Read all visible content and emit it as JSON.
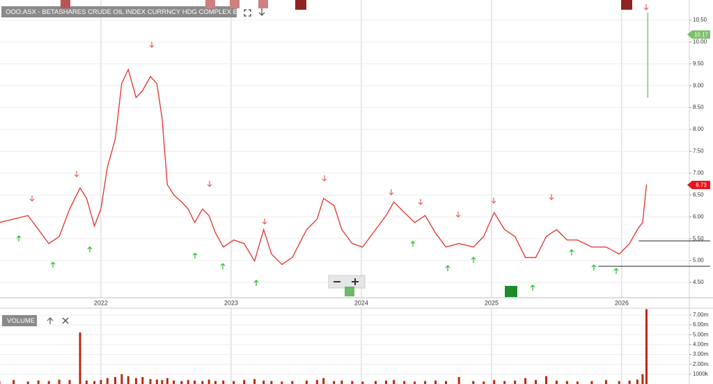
{
  "chart_data": [
    {
      "type": "line",
      "title": "OOO.ASX - BETASHARES CRUDE OIL INDEX CURRNCY HDG COMPLEX ETF",
      "x": [
        2021.22,
        2021.33,
        2021.44,
        2021.52,
        2021.6,
        2021.68,
        2021.76,
        2021.84,
        2021.89,
        2021.95,
        2022.0,
        2022.05,
        2022.11,
        2022.16,
        2022.21,
        2022.27,
        2022.32,
        2022.38,
        2022.43,
        2022.47,
        2022.51,
        2022.56,
        2022.62,
        2022.67,
        2022.72,
        2022.78,
        2022.83,
        2022.88,
        2022.94,
        2023.02,
        2023.1,
        2023.18,
        2023.25,
        2023.31,
        2023.39,
        2023.47,
        2023.58,
        2023.66,
        2023.71,
        2023.79,
        2023.85,
        2023.93,
        2024.01,
        2024.11,
        2024.19,
        2024.25,
        2024.33,
        2024.41,
        2024.49,
        2024.57,
        2024.65,
        2024.75,
        2024.86,
        2024.94,
        2025.02,
        2025.1,
        2025.18,
        2025.26,
        2025.34,
        2025.42,
        2025.5,
        2025.58,
        2025.66,
        2025.77,
        2025.88,
        2025.98,
        2026.06,
        2026.12,
        2026.16,
        2026.19
      ],
      "values": [
        5.87,
        5.95,
        6.03,
        5.71,
        5.39,
        5.55,
        6.18,
        6.66,
        6.42,
        5.79,
        6.18,
        7.14,
        7.78,
        9.05,
        9.37,
        8.73,
        8.89,
        9.21,
        9.05,
        8.25,
        6.74,
        6.5,
        6.34,
        6.18,
        5.87,
        6.18,
        6.03,
        5.63,
        5.31,
        5.47,
        5.39,
        4.99,
        5.71,
        5.15,
        4.91,
        5.07,
        5.71,
        5.95,
        6.42,
        6.26,
        5.71,
        5.39,
        5.31,
        5.71,
        6.03,
        6.34,
        6.1,
        5.87,
        6.03,
        5.63,
        5.31,
        5.39,
        5.31,
        5.55,
        6.1,
        5.71,
        5.55,
        5.07,
        5.07,
        5.55,
        5.71,
        5.47,
        5.47,
        5.31,
        5.31,
        5.15,
        5.39,
        5.71,
        5.87,
        6.74
      ],
      "color": "#e0302a",
      "xlim": [
        2021.225,
        2026.519
      ],
      "ylim": [
        4.15,
        10.96
      ],
      "xticks": [
        2022,
        2023,
        2024,
        2025,
        2026
      ],
      "yticks": [
        {
          "value": 4.5,
          "label": "4.50"
        },
        {
          "value": 5,
          "label": "5.00"
        },
        {
          "value": 5.5,
          "label": "5.50"
        },
        {
          "value": 6,
          "label": "6.00"
        },
        {
          "value": 6.5,
          "label": "6.50"
        },
        {
          "value": 7,
          "label": "7.00"
        },
        {
          "value": 7.5,
          "label": "7.50"
        },
        {
          "value": 8,
          "label": "8.00"
        },
        {
          "value": 8.5,
          "label": "8.50"
        },
        {
          "value": 9,
          "label": "9.00"
        },
        {
          "value": 9.5,
          "label": "9.50"
        },
        {
          "value": 10,
          "label": "10.00"
        },
        {
          "value": 10.5,
          "label": "10.50"
        }
      ],
      "grid": true,
      "price_tags": [
        {
          "value": 10.17,
          "color": "#7dbf6a"
        },
        {
          "value": 6.73,
          "color": "#e8141b"
        }
      ],
      "levels": [
        {
          "value": 5.45,
          "from": 2026.13
        },
        {
          "value": 4.87,
          "from": 2025.82
        }
      ],
      "latest_bar": {
        "x": 2026.2,
        "low": 8.73,
        "high": 10.67,
        "color": "#7dc56c"
      }
    },
    {
      "type": "bar",
      "title": "VOLUME",
      "x": [
        2021.22,
        2021.33,
        2021.44,
        2021.52,
        2021.6,
        2021.68,
        2021.76,
        2021.84,
        2021.89,
        2021.95,
        2022.0,
        2022.05,
        2022.11,
        2022.16,
        2022.21,
        2022.27,
        2022.32,
        2022.38,
        2022.43,
        2022.47,
        2022.51,
        2022.56,
        2022.62,
        2022.67,
        2022.72,
        2022.78,
        2022.83,
        2022.88,
        2022.94,
        2023.02,
        2023.1,
        2023.18,
        2023.25,
        2023.31,
        2023.39,
        2023.47,
        2023.58,
        2023.66,
        2023.71,
        2023.79,
        2023.85,
        2023.93,
        2024.01,
        2024.11,
        2024.19,
        2024.25,
        2024.33,
        2024.41,
        2024.49,
        2024.57,
        2024.65,
        2024.75,
        2024.86,
        2024.94,
        2025.02,
        2025.1,
        2025.18,
        2025.26,
        2025.34,
        2025.42,
        2025.5,
        2025.58,
        2025.66,
        2025.77,
        2025.88,
        2025.98,
        2026.06,
        2026.12,
        2026.16,
        2026.19
      ],
      "values": [
        300000,
        400000,
        250000,
        350000,
        300000,
        450000,
        400000,
        5240000,
        350000,
        300000,
        400000,
        600000,
        700000,
        1000000,
        800000,
        600000,
        700000,
        500000,
        450000,
        400000,
        600000,
        350000,
        300000,
        400000,
        350000,
        300000,
        450000,
        300000,
        350000,
        300000,
        400000,
        500000,
        350000,
        300000,
        250000,
        300000,
        350000,
        400000,
        600000,
        300000,
        350000,
        300000,
        250000,
        300000,
        350000,
        400000,
        300000,
        250000,
        300000,
        350000,
        300000,
        700000,
        300000,
        250000,
        400000,
        300000,
        350000,
        600000,
        400000,
        800000,
        350000,
        300000,
        250000,
        300000,
        400000,
        300000,
        350000,
        450000,
        1000000,
        7600000
      ],
      "color": "#b52a10",
      "ylim": [
        0,
        7700000
      ],
      "yticks": [
        {
          "value": 1000000,
          "label": "1000k"
        },
        {
          "value": 2000000,
          "label": "2.00m"
        },
        {
          "value": 3000000,
          "label": "3.00m"
        },
        {
          "value": 4000000,
          "label": "4.00m"
        },
        {
          "value": 5000000,
          "label": "5.00m"
        },
        {
          "value": 6000000,
          "label": "6.00m"
        },
        {
          "value": 7000000,
          "label": "7.00m"
        }
      ]
    }
  ]
}
